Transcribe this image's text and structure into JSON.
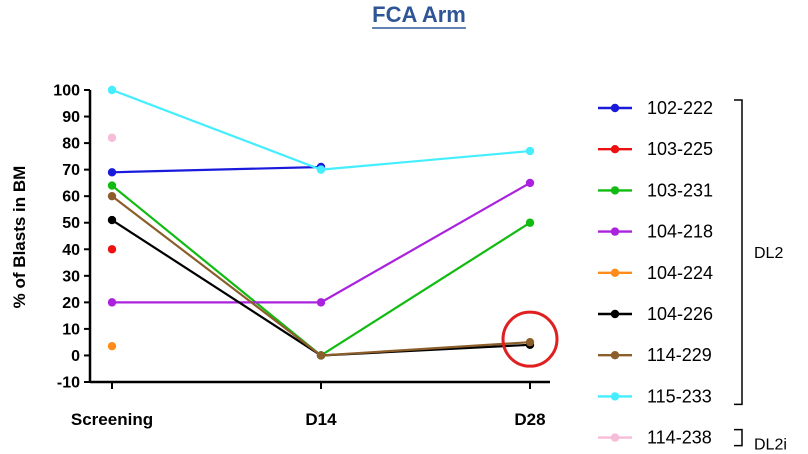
{
  "chart_data": {
    "type": "line",
    "title": "FCA Arm",
    "ylabel": "% of Blasts in BM",
    "xlabel": "",
    "categories": [
      "Screening",
      "D14",
      "D28"
    ],
    "ylim": [
      -10,
      100
    ],
    "yticks": [
      -10,
      0,
      10,
      20,
      30,
      40,
      50,
      60,
      70,
      80,
      90,
      100
    ],
    "grid": false,
    "legend_position": "right",
    "series": [
      {
        "name": "102-222",
        "color": "#1a1adc",
        "values": [
          69,
          71,
          null
        ]
      },
      {
        "name": "103-225",
        "color": "#ee1111",
        "values": [
          40,
          null,
          null
        ]
      },
      {
        "name": "103-231",
        "color": "#11bb11",
        "values": [
          64,
          0,
          50
        ]
      },
      {
        "name": "104-218",
        "color": "#aa22dd",
        "values": [
          20,
          20,
          65
        ]
      },
      {
        "name": "104-224",
        "color": "#ff8c1a",
        "values": [
          3.5,
          null,
          null
        ]
      },
      {
        "name": "104-226",
        "color": "#000000",
        "values": [
          51,
          0,
          4
        ]
      },
      {
        "name": "114-229",
        "color": "#8b5e2a",
        "values": [
          60,
          0,
          5
        ]
      },
      {
        "name": "115-233",
        "color": "#44eeff",
        "values": [
          100,
          70,
          77
        ]
      },
      {
        "name": "114-238",
        "color": "#f7bcd8",
        "values": [
          82,
          null,
          null
        ]
      }
    ],
    "groups": [
      {
        "label": "DL2",
        "from": 0,
        "to": 7
      },
      {
        "label": "DL2i",
        "from": 8,
        "to": 8
      }
    ],
    "annotations": [
      {
        "type": "circle",
        "color": "#e02020",
        "category": "D28",
        "value": 5
      }
    ]
  }
}
